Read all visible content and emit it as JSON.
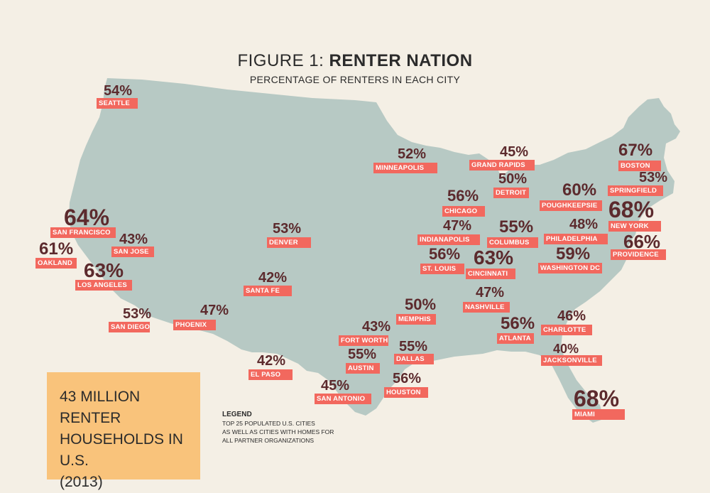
{
  "header": {
    "title_prefix": "FIGURE 1:",
    "title_main": "RENTER NATION",
    "subtitle": "PERCENTAGE OF RENTERS IN EACH CITY"
  },
  "colors": {
    "map": "#b7c9c4",
    "label_bg": "#f2685e",
    "percent_text": "#5c2a2d",
    "callout_bg": "#f9c37b",
    "background": "#f4efe5"
  },
  "cities": [
    {
      "name": "SEATTLE",
      "pct": "54%"
    },
    {
      "name": "MINNEAPOLIS",
      "pct": "52%"
    },
    {
      "name": "GRAND RAPIDS",
      "pct": "45%"
    },
    {
      "name": "DETROIT",
      "pct": "50%"
    },
    {
      "name": "BOSTON",
      "pct": "67%"
    },
    {
      "name": "SPRINGFIELD",
      "pct": "53%"
    },
    {
      "name": "POUGHKEEPSIE",
      "pct": "60%"
    },
    {
      "name": "NEW YORK",
      "pct": "68%"
    },
    {
      "name": "CHICAGO",
      "pct": "56%"
    },
    {
      "name": "PHILADELPHIA",
      "pct": "48%"
    },
    {
      "name": "PROVIDENCE",
      "pct": "66%"
    },
    {
      "name": "SAN FRANCISCO",
      "pct": "64%"
    },
    {
      "name": "SAN JOSE",
      "pct": "43%"
    },
    {
      "name": "OAKLAND",
      "pct": "61%"
    },
    {
      "name": "LOS ANGELES",
      "pct": "63%"
    },
    {
      "name": "DENVER",
      "pct": "53%"
    },
    {
      "name": "INDIANAPOLIS",
      "pct": "47%"
    },
    {
      "name": "COLUMBUS",
      "pct": "55%"
    },
    {
      "name": "ST. LOUIS",
      "pct": "56%"
    },
    {
      "name": "CINCINNATI",
      "pct": "63%"
    },
    {
      "name": "WASHINGTON DC",
      "pct": "59%"
    },
    {
      "name": "SANTA FE",
      "pct": "42%"
    },
    {
      "name": "NASHVILLE",
      "pct": "47%"
    },
    {
      "name": "MEMPHIS",
      "pct": "50%"
    },
    {
      "name": "CHARLOTTE",
      "pct": "46%"
    },
    {
      "name": "SAN DIEGO",
      "pct": "53%"
    },
    {
      "name": "PHOENIX",
      "pct": "47%"
    },
    {
      "name": "FORT WORTH",
      "pct": "43%"
    },
    {
      "name": "ATLANTA",
      "pct": "56%"
    },
    {
      "name": "EL PASO",
      "pct": "42%"
    },
    {
      "name": "DALLAS",
      "pct": "55%"
    },
    {
      "name": "AUSTIN",
      "pct": "55%"
    },
    {
      "name": "JACKSONVILLE",
      "pct": "40%"
    },
    {
      "name": "SAN ANTONIO",
      "pct": "45%"
    },
    {
      "name": "HOUSTON",
      "pct": "56%"
    },
    {
      "name": "MIAMI",
      "pct": "68%"
    }
  ],
  "callout": {
    "line1": "43 MILLION RENTER",
    "line2": "HOUSEHOLDS IN U.S.",
    "line3": "(2013)"
  },
  "legend": {
    "title": "LEGEND",
    "line1": "TOP 25 POPULATED  U.S. CITIES",
    "line2": "AS WELL AS CITIES WITH HOMES FOR",
    "line3": "ALL PARTNER ORGANIZATIONS"
  }
}
